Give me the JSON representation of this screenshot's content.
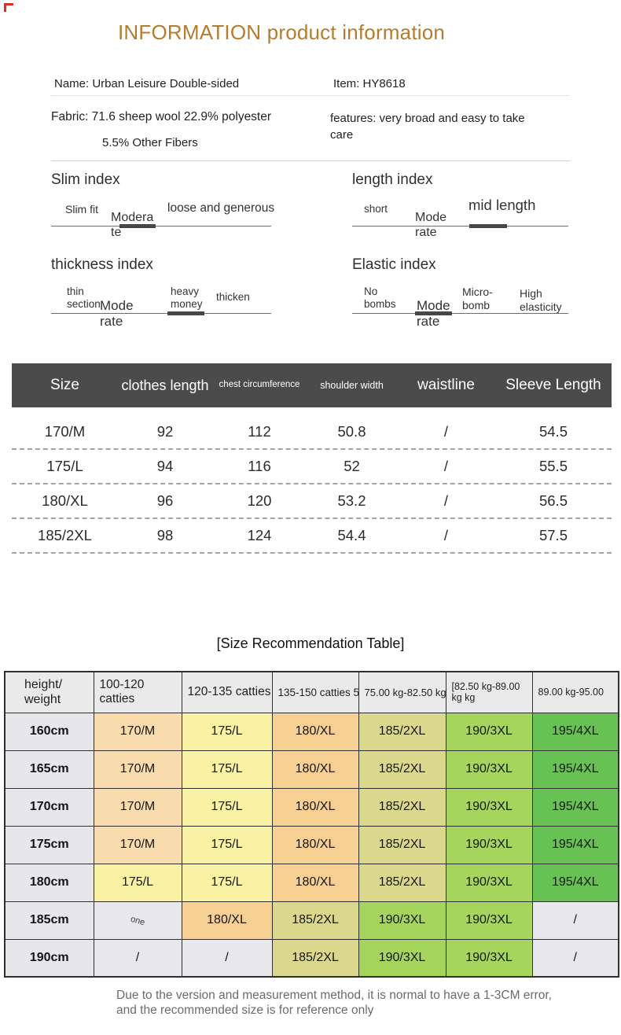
{
  "title": "INFORMATION product information",
  "accent_color": "#b67c2e",
  "info": {
    "name": "Name: Urban Leisure Double-sided",
    "item": "Item: HY8618",
    "fabric": "Fabric: 71.6 sheep wool 22.9% polyester",
    "fabric2": "5.5% Other Fibers",
    "features": "features: very broad and easy to take care"
  },
  "indexes": {
    "slim": {
      "title": "Slim index",
      "labels": [
        "Slim fit",
        "Modera te",
        "loose and generous"
      ]
    },
    "length": {
      "title": "length index",
      "labels": [
        "short",
        "Mode rate",
        "mid length"
      ]
    },
    "thickness": {
      "title": "thickness index",
      "labels": [
        "thin section",
        "Mode rate",
        "heavy money",
        "thicken"
      ]
    },
    "elastic": {
      "title": "Elastic index",
      "labels": [
        "No bombs",
        "Mode rate",
        "Micro- bomb",
        "High elasticity"
      ]
    }
  },
  "size_table": {
    "header_bg": "#4b4b4b",
    "headers": [
      "Size",
      "clothes length",
      "chest circumference",
      "shoulder width",
      "waistline",
      "Sleeve Length"
    ],
    "rows": [
      [
        "170/M",
        "92",
        "112",
        "50.8",
        "/",
        "54.5"
      ],
      [
        "175/L",
        "94",
        "116",
        "52",
        "/",
        "55.5"
      ],
      [
        "180/XL",
        "96",
        "120",
        "53.2",
        "/",
        "56.5"
      ],
      [
        "185/2XL",
        "98",
        "124",
        "54.4",
        "/",
        "57.5"
      ]
    ]
  },
  "recommendation": {
    "title": "[Size Recommendation Table]",
    "headers": [
      "height/ weight",
      "100-120 catties",
      "120-135 catties",
      "135-150 catties 5",
      "75.00 kg-82.50 kg",
      "[82.50 kg-89.00 kg kg",
      "89.00 kg-95.00"
    ],
    "palette": {
      "peach": "#f8dcae",
      "yellow": "#f9f2a4",
      "orange": "#f6d093",
      "olive": "#d9d88d",
      "green": "#a6d55e",
      "deep_green": "#68c253",
      "gray": "#e8e8ec",
      "header_bg": "#eaeaea",
      "height_bg": "#e7e7eb"
    },
    "rows": [
      {
        "height": "160cm",
        "cells": [
          {
            "text": "170/M",
            "color": "peach"
          },
          {
            "text": "175/L",
            "color": "yellow"
          },
          {
            "text": "180/XL",
            "color": "orange"
          },
          {
            "text": "185/2XL",
            "color": "olive"
          },
          {
            "text": "190/3XL",
            "color": "green"
          },
          {
            "text": "195/4XL",
            "color": "deep_green"
          }
        ]
      },
      {
        "height": "165cm",
        "cells": [
          {
            "text": "170/M",
            "color": "peach"
          },
          {
            "text": "175/L",
            "color": "yellow"
          },
          {
            "text": "180/XL",
            "color": "orange"
          },
          {
            "text": "185/2XL",
            "color": "olive"
          },
          {
            "text": "190/3XL",
            "color": "green"
          },
          {
            "text": "195/4XL",
            "color": "deep_green"
          }
        ]
      },
      {
        "height": "170cm",
        "cells": [
          {
            "text": "170/M",
            "color": "peach"
          },
          {
            "text": "175/L",
            "color": "yellow"
          },
          {
            "text": "180/XL",
            "color": "orange"
          },
          {
            "text": "185/2XL",
            "color": "olive"
          },
          {
            "text": "190/3XL",
            "color": "green"
          },
          {
            "text": "195/4XL",
            "color": "deep_green"
          }
        ]
      },
      {
        "height": "175cm",
        "cells": [
          {
            "text": "170/M",
            "color": "peach"
          },
          {
            "text": "175/L",
            "color": "yellow"
          },
          {
            "text": "180/XL",
            "color": "orange"
          },
          {
            "text": "185/2XL",
            "color": "olive"
          },
          {
            "text": "190/3XL",
            "color": "green"
          },
          {
            "text": "195/4XL",
            "color": "deep_green"
          }
        ]
      },
      {
        "height": "180cm",
        "cells": [
          {
            "text": "175/L",
            "color": "yellow"
          },
          {
            "text": "175/L",
            "color": "yellow"
          },
          {
            "text": "180/XL",
            "color": "orange"
          },
          {
            "text": "185/2XL",
            "color": "olive"
          },
          {
            "text": "190/3XL",
            "color": "green"
          },
          {
            "text": "195/4XL",
            "color": "deep_green"
          }
        ]
      },
      {
        "height": "185cm",
        "cells": [
          {
            "text": "one",
            "color": "gray",
            "rot": true
          },
          {
            "text": "180/XL",
            "color": "orange"
          },
          {
            "text": "185/2XL",
            "color": "olive"
          },
          {
            "text": "190/3XL",
            "color": "green"
          },
          {
            "text": "190/3XL",
            "color": "green"
          },
          {
            "text": "/",
            "color": "gray"
          }
        ]
      },
      {
        "height": "190cm",
        "cells": [
          {
            "text": "/",
            "color": "gray"
          },
          {
            "text": "/",
            "color": "gray"
          },
          {
            "text": "185/2XL",
            "color": "olive"
          },
          {
            "text": "190/3XL",
            "color": "green"
          },
          {
            "text": "190/3XL",
            "color": "green"
          },
          {
            "text": "/",
            "color": "gray"
          }
        ]
      }
    ]
  },
  "footer": {
    "line1": "Due to the version and measurement method, it is normal to have a 1-3CM error,",
    "line2": "and the recommended size is for reference only"
  }
}
